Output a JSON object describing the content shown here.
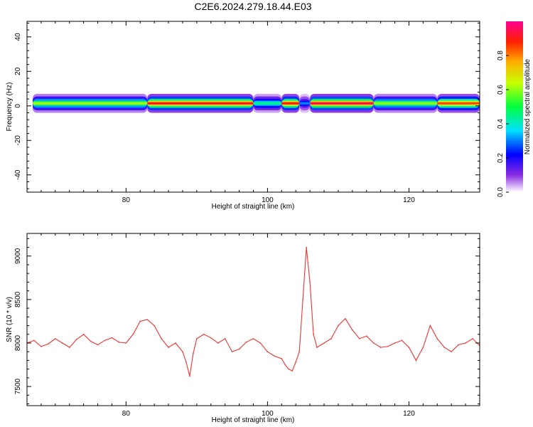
{
  "page_title": "C2E6.2024.279.18.44.E03",
  "chart_data": [
    {
      "type": "heatmap",
      "xlabel": "Height of straight line (km)",
      "ylabel": "Frequency (Hz)",
      "xlim": [
        66,
        130
      ],
      "ylim": [
        -50,
        49
      ],
      "xticks": [
        80,
        100,
        120
      ],
      "yticks": [
        -40,
        -20,
        0,
        20,
        40
      ],
      "grid": false,
      "band_center_freq": 1.5,
      "band_segments": [
        {
          "x0": 66.8,
          "x1": 83,
          "level": 0.62
        },
        {
          "x0": 83,
          "x1": 98,
          "level": 0.92
        },
        {
          "x0": 98,
          "x1": 102,
          "level": 0.45
        },
        {
          "x0": 102,
          "x1": 104.5,
          "level": 0.9
        },
        {
          "x0": 104.5,
          "x1": 106,
          "level": 0.3
        },
        {
          "x0": 106,
          "x1": 115,
          "level": 0.95
        },
        {
          "x0": 115,
          "x1": 124,
          "level": 0.6
        },
        {
          "x0": 124,
          "x1": 130,
          "level": 0.85
        }
      ],
      "colorbar": {
        "label": "Normalized spectral amplitude",
        "range": [
          0,
          1
        ],
        "ticks": [
          "0.0",
          "0.2",
          "0.4",
          "0.6",
          "0.8"
        ],
        "colormap": "hsv-rainbow"
      }
    },
    {
      "type": "line",
      "xlabel": "Height of straight line (km)",
      "ylabel": "SNR (10 * v/v)",
      "xlim": [
        66,
        130
      ],
      "ylim": [
        7280,
        9260
      ],
      "xticks": [
        80,
        100,
        120
      ],
      "yticks": [
        7500,
        8000,
        8500,
        9000
      ],
      "grid": false,
      "series": [
        {
          "color": "#ee3333",
          "x": [
            66,
            67,
            68,
            69,
            70,
            71,
            72,
            73,
            74,
            75,
            76,
            77,
            78,
            79,
            80,
            81,
            82,
            83,
            84,
            85,
            86,
            87,
            88,
            88.5,
            89,
            89.5,
            90,
            91,
            92,
            93,
            94,
            95,
            96,
            97,
            98,
            99,
            100,
            101,
            102,
            102.5,
            103,
            103.5,
            104,
            104.5,
            105,
            105.5,
            106,
            106.5,
            107,
            108,
            109,
            110,
            111,
            112,
            113,
            114,
            115,
            116,
            117,
            118,
            119,
            120,
            121,
            122,
            123,
            124,
            125,
            126,
            127,
            128,
            129,
            130
          ],
          "values": [
            8000,
            8030,
            7960,
            7990,
            8050,
            8000,
            7950,
            8040,
            8100,
            8020,
            7980,
            8030,
            8060,
            8010,
            8000,
            8100,
            8250,
            8270,
            8200,
            8050,
            7950,
            8000,
            7900,
            7780,
            7620,
            7880,
            8050,
            8100,
            8060,
            8000,
            8050,
            7900,
            7930,
            8010,
            8050,
            8000,
            7900,
            7850,
            7820,
            7750,
            7700,
            7680,
            7780,
            7900,
            8500,
            9100,
            8700,
            8100,
            7950,
            8000,
            8050,
            8200,
            8280,
            8150,
            8050,
            8080,
            8000,
            7950,
            7960,
            8000,
            8030,
            7950,
            7800,
            7950,
            8200,
            8050,
            7950,
            7900,
            7980,
            8000,
            8050,
            7970
          ]
        }
      ]
    }
  ]
}
